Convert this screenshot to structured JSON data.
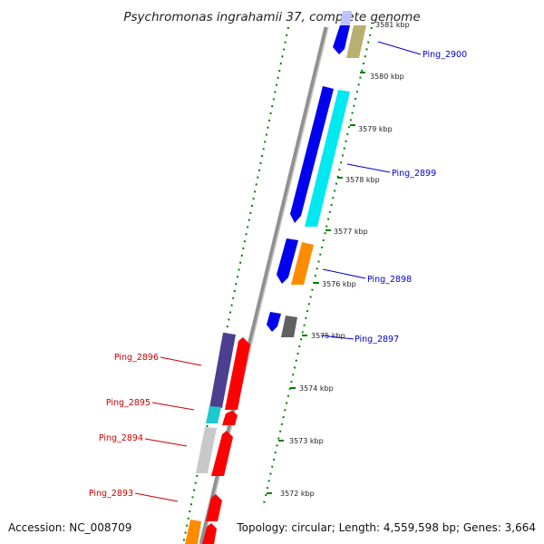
{
  "title": "Psychromonas ingrahamii 37, complete genome",
  "footer": {
    "accession": "Accession: NC_008709",
    "topology": "Topology: circular; Length: 4,559,598 bp; Genes: 3,664"
  },
  "ticks": [
    "3581 kbp",
    "3580 kbp",
    "3579 kbp",
    "3578 kbp",
    "3577 kbp",
    "3576 kbp",
    "3575 kbp",
    "3574 kbp",
    "3573 kbp",
    "3572 kbp"
  ],
  "gene_labels_right": [
    "Ping_2900",
    "Ping_2899",
    "Ping_2898",
    "Ping_2897"
  ],
  "gene_labels_left": [
    "Ping_2896",
    "Ping_2895",
    "Ping_2894",
    "Ping_2893"
  ],
  "colors": {
    "blue": "#0000ee",
    "cyan": "#00e8f0",
    "khaki": "#b8b070",
    "orange": "#ff8c00",
    "gray": "#606060",
    "navy": "#4b3f8f",
    "teal": "#20c8d0",
    "lightgray": "#c8c8c8",
    "red": "#ff0000",
    "lavender": "#c0c0ff",
    "backbone": "#909090",
    "tickgreen": "#008000"
  }
}
